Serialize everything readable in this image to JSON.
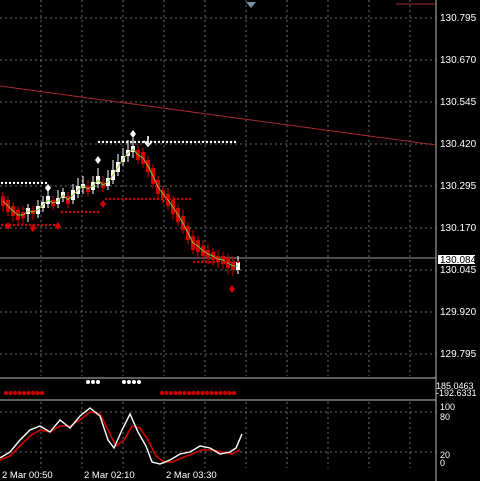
{
  "symbol_chart": {
    "price_axis": [
      "130.795",
      "130.670",
      "130.545",
      "130.420",
      "130.295",
      "130.170",
      "130.045",
      "129.920",
      "129.795"
    ],
    "current_price": "130.084",
    "time_axis": [
      "2 Mar 00:50",
      "2 Mar 02:10",
      "2 Mar 03:30"
    ]
  },
  "indicator_panel": {
    "values": [
      "185.0463",
      "-192.6331"
    ]
  },
  "stochastic_panel": {
    "levels": [
      "100",
      "80",
      "20",
      "0"
    ]
  },
  "colors": {
    "background": "#000000",
    "grid": "#6b6b6b",
    "bear_candle": "#d40000",
    "bull_candle": "#ffffff",
    "trend_line": "#a52a2a",
    "signal_line": "#d40000",
    "main_line": "#ffffff",
    "ma_line": "#8fbc3a"
  }
}
